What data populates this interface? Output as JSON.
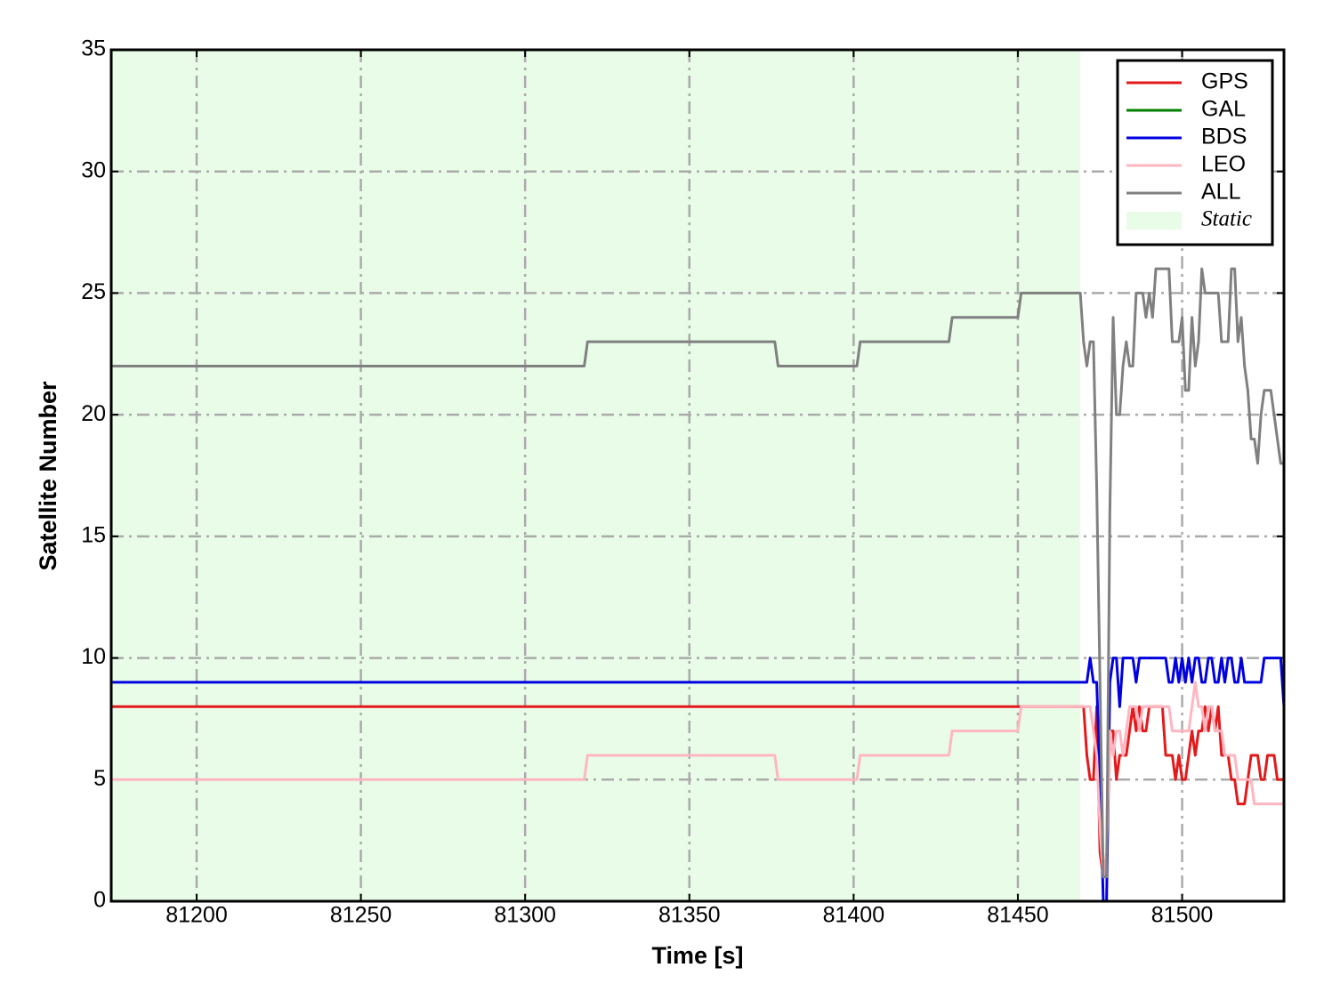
{
  "chart_data": {
    "type": "line",
    "xlabel": "Time [s]",
    "ylabel": "Satellite Number",
    "x": [
      81174,
      81318,
      81319,
      81376,
      81377,
      81401,
      81402,
      81429,
      81430,
      81450,
      81451,
      81469,
      81470,
      81471,
      81472,
      81473,
      81474,
      81475,
      81476,
      81477,
      81478,
      81479,
      81480,
      81481,
      81482,
      81483,
      81484,
      81485,
      81486,
      81487,
      81488,
      81489,
      81490,
      81491,
      81492,
      81493,
      81494,
      81495,
      81496,
      81497,
      81498,
      81499,
      81500,
      81501,
      81502,
      81503,
      81504,
      81505,
      81506,
      81507,
      81508,
      81509,
      81510,
      81511,
      81512,
      81513,
      81514,
      81515,
      81516,
      81517,
      81518,
      81519,
      81520,
      81521,
      81522,
      81523,
      81524,
      81525,
      81526,
      81527,
      81528,
      81529,
      81530,
      81531
    ],
    "series": [
      {
        "name": "GPS",
        "color": "#e31a1c",
        "values": [
          8,
          8,
          8,
          8,
          8,
          8,
          8,
          8,
          8,
          8,
          8,
          8,
          8,
          6,
          5,
          5,
          8,
          2,
          1,
          1,
          7,
          7,
          5,
          6,
          6,
          6,
          7,
          8,
          7,
          8,
          7,
          7,
          8,
          8,
          8,
          8,
          8,
          6,
          6,
          6,
          5,
          6,
          5,
          5,
          6,
          7,
          6,
          7,
          7,
          8,
          7,
          8,
          7,
          8,
          6,
          6,
          6,
          5,
          5,
          4,
          4,
          4,
          5,
          6,
          6,
          6,
          5,
          5,
          6,
          6,
          6,
          5,
          5,
          5
        ]
      },
      {
        "name": "GAL",
        "color": "#008000",
        "values": [
          0,
          0,
          0,
          0,
          0,
          0,
          0,
          0,
          0,
          0,
          0,
          0,
          0,
          0,
          0,
          0,
          0,
          0,
          0,
          0,
          0,
          0,
          0,
          0,
          0,
          0,
          0,
          0,
          0,
          0,
          0,
          0,
          0,
          0,
          0,
          0,
          0,
          0,
          0,
          0,
          0,
          0,
          0,
          0,
          0,
          0,
          0,
          0,
          0,
          0,
          0,
          0,
          0,
          0,
          0,
          0,
          0,
          0,
          0,
          0,
          0,
          0,
          0,
          0,
          0,
          0,
          0,
          0,
          0,
          0,
          0,
          0,
          0,
          0
        ]
      },
      {
        "name": "BDS",
        "color": "#0000e0",
        "values": [
          9,
          9,
          9,
          9,
          9,
          9,
          9,
          9,
          9,
          9,
          9,
          9,
          9,
          9,
          10,
          9,
          9,
          5,
          0,
          0,
          9,
          10,
          10,
          8,
          10,
          10,
          10,
          10,
          9,
          10,
          10,
          10,
          10,
          10,
          10,
          10,
          10,
          10,
          9,
          9,
          10,
          9,
          10,
          9,
          10,
          9,
          10,
          10,
          9,
          9,
          10,
          10,
          9,
          9,
          10,
          9,
          10,
          10,
          9,
          9,
          10,
          9,
          9,
          9,
          9,
          9,
          9,
          10,
          10,
          10,
          10,
          10,
          10,
          8
        ]
      },
      {
        "name": "LEO",
        "color": "#ffb6c1",
        "values": [
          5,
          5,
          6,
          6,
          5,
          5,
          6,
          6,
          7,
          7,
          8,
          8,
          8,
          8,
          8,
          7,
          6,
          3,
          1,
          2,
          7,
          6,
          7,
          7,
          6,
          7,
          8,
          8,
          8,
          7,
          8,
          8,
          8,
          8,
          8,
          8,
          8,
          8,
          8,
          7,
          7,
          7,
          7,
          7,
          7,
          8,
          9,
          8,
          8,
          7,
          8,
          8,
          7,
          7,
          7,
          6,
          6,
          6,
          6,
          5,
          5,
          5,
          5,
          5,
          4,
          4,
          4,
          4,
          4,
          4,
          4,
          4,
          4,
          4
        ]
      },
      {
        "name": "ALL",
        "color": "#808080",
        "values": [
          22,
          22,
          23,
          23,
          22,
          22,
          23,
          23,
          24,
          24,
          25,
          25,
          23,
          22,
          23,
          23,
          17,
          9,
          1,
          1,
          16,
          24,
          20,
          20,
          22,
          23,
          22,
          22,
          25,
          25,
          25,
          24,
          25,
          24,
          26,
          26,
          26,
          26,
          26,
          23,
          23,
          23,
          24,
          21,
          21,
          24,
          22,
          23,
          26,
          25,
          25,
          25,
          25,
          25,
          23,
          23,
          23,
          26,
          26,
          23,
          24,
          22,
          21,
          19,
          19,
          18,
          20,
          21,
          21,
          21,
          20,
          19,
          18,
          18
        ]
      }
    ],
    "static_region": {
      "label": "Static",
      "xrange": [
        81174,
        81469
      ],
      "color": "#e8fce8"
    },
    "xlim": [
      81174,
      81531
    ],
    "ylim": [
      0,
      35
    ],
    "xticks": [
      81200,
      81250,
      81300,
      81350,
      81400,
      81450,
      81500
    ],
    "yticks": [
      0,
      5,
      10,
      15,
      20,
      25,
      30,
      35
    ],
    "grid": true,
    "legend": "upper right"
  }
}
